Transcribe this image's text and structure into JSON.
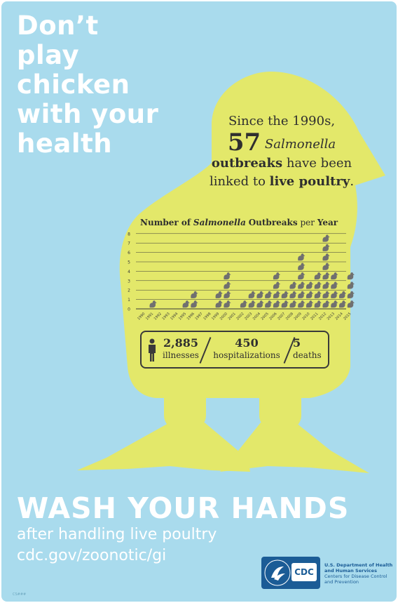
{
  "headline": [
    "Don’t",
    "play",
    "chicken",
    "with your",
    "health"
  ],
  "intro": {
    "line1": "Since the 1990s,",
    "count": "57",
    "organism": "Salmonella",
    "outbreaks": "outbreaks",
    "have_been": "have been",
    "linked_to": "linked to",
    "live_poultry": "live poultry",
    "period": "."
  },
  "chart_title": {
    "number_of": "Number of",
    "organism": "Salmonella",
    "outbreaks": "Outbreaks",
    "per": "per",
    "year": "Year"
  },
  "chart_data": {
    "type": "bar",
    "title": "Number of Salmonella Outbreaks per Year",
    "categories": [
      "1990",
      "1991",
      "1992",
      "1993",
      "1994",
      "1995",
      "1996",
      "1997",
      "1998",
      "1999",
      "2000",
      "2001",
      "2002",
      "2003",
      "2004",
      "2005",
      "2006",
      "2007",
      "2008",
      "2009",
      "2010",
      "2011",
      "2012",
      "2013",
      "2014",
      "2015"
    ],
    "values": [
      0,
      1,
      0,
      0,
      0,
      1,
      2,
      0,
      0,
      2,
      4,
      0,
      1,
      2,
      2,
      2,
      4,
      2,
      3,
      6,
      3,
      4,
      8,
      4,
      2,
      4
    ],
    "ylim": [
      0,
      8
    ],
    "yticks": [
      "0",
      "1",
      "2",
      "3",
      "4",
      "5",
      "6",
      "7",
      "8"
    ],
    "marker": "chick-icon",
    "grid": true
  },
  "stats": {
    "illnesses_num": "2,885",
    "illnesses_lbl": "illnesses",
    "hosp_num": "450",
    "hosp_lbl": "hospitalizations",
    "deaths_num": "5",
    "deaths_lbl": "deaths"
  },
  "footer": {
    "wash": "WASH YOUR HANDS",
    "after": "after handling live poultry",
    "url": "cdc.gov/zoonotic/gi",
    "cdc": "CDC",
    "dept": "U.S. Department of Health and Human Services",
    "centers": "Centers for Disease Control and Prevention",
    "code": "CS###"
  },
  "colors": {
    "background": "#a9dbed",
    "chick": "#e3e86a",
    "ink": "#3a3a3a",
    "marker": "#707070",
    "cdc_blue": "#1b5c96"
  }
}
